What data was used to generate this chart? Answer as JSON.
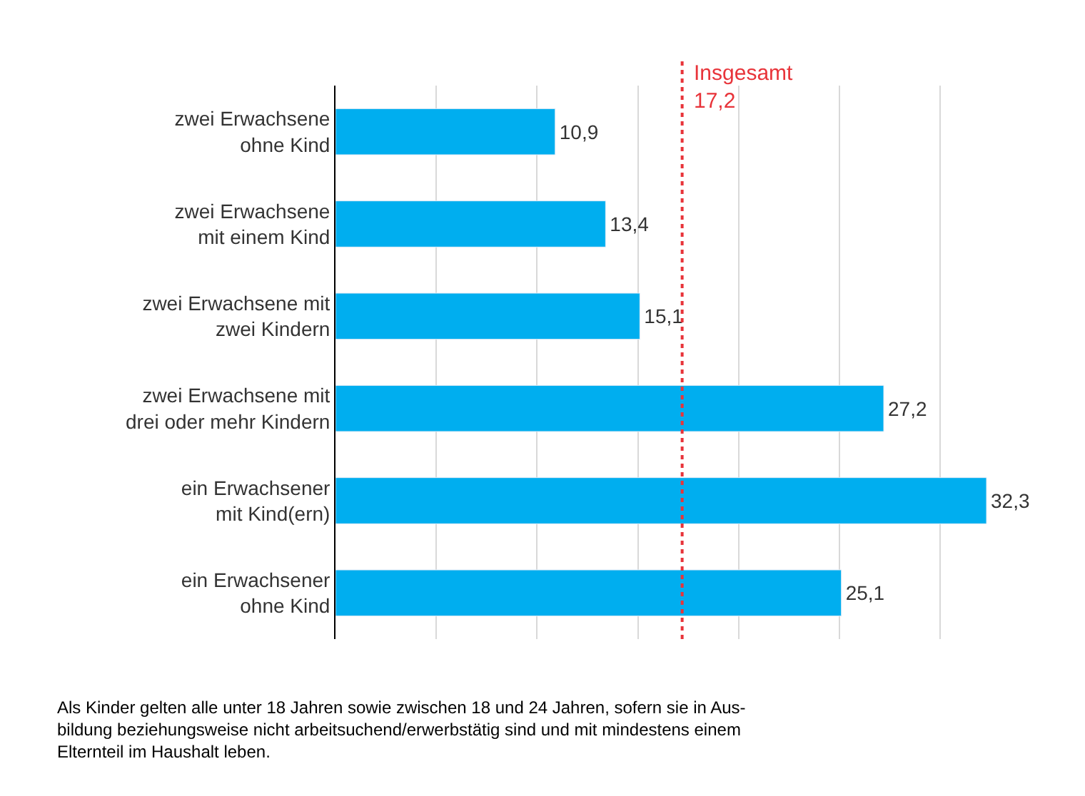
{
  "chart_data": {
    "type": "bar",
    "orientation": "horizontal",
    "categories": [
      "zwei Erwachsene\nohne Kind",
      "zwei Erwachsene\nmit einem Kind",
      "zwei Erwachsene mit\nzwei Kindern",
      "zwei Erwachsene mit\ndrei oder mehr Kindern",
      "ein Erwachsener\nmit Kind(ern)",
      "ein Erwachsener\nohne Kind"
    ],
    "values": [
      10.9,
      13.4,
      15.1,
      27.2,
      32.3,
      25.1
    ],
    "value_labels": [
      "10,9",
      "13,4",
      "15,1",
      "27,2",
      "32,3",
      "25,1"
    ],
    "color": "#00aeef",
    "xticks": [
      {
        "value": 0,
        "label": null
      },
      {
        "value": 5,
        "label": null
      },
      {
        "value": 10,
        "label": null
      },
      {
        "value": 15,
        "label": null
      },
      {
        "value": 20,
        "label": null
      },
      {
        "value": 25,
        "label": null
      },
      {
        "value": 30,
        "label": null
      }
    ],
    "tick_labels": "y",
    "grid": "x",
    "ref_lines": [
      {
        "axis": "x",
        "value": 17.2,
        "label": "Insgesamt\n17,2",
        "color": "#e8343a",
        "line_style": "dotted"
      }
    ],
    "annotations": [
      "Als Kinder gelten alle unter 18 Jahren sowie zwischen 18 und 24 Jahren, sofern sie in Aus-\nbildung beziehungsweise nicht arbeitsuchend/erwerbstätig sind und mit mindestens einem\nElternteil im Haushalt leben."
    ]
  }
}
